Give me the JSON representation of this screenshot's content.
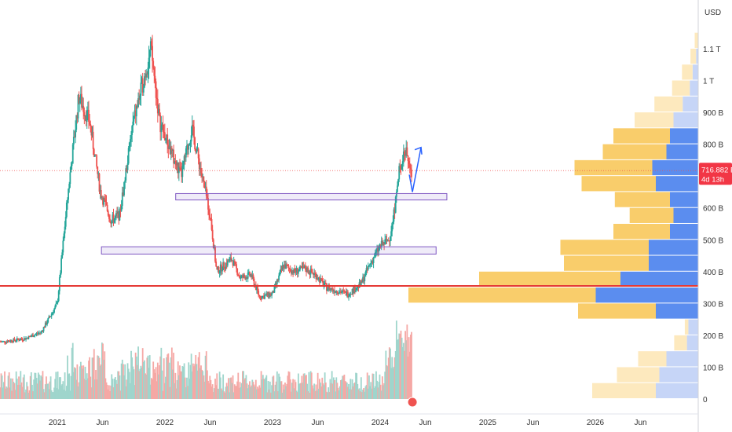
{
  "chart_data": {
    "type": "candlestick",
    "currency_label": "USD",
    "y_axis": {
      "min": 0,
      "max": 1200,
      "ticks": [
        {
          "value": 0,
          "label": "0"
        },
        {
          "value": 100,
          "label": "100 B"
        },
        {
          "value": 200,
          "label": "200 B"
        },
        {
          "value": 300,
          "label": "300 B"
        },
        {
          "value": 400,
          "label": "400 B"
        },
        {
          "value": 500,
          "label": "500 B"
        },
        {
          "value": 600,
          "label": "600 B"
        },
        {
          "value": 800,
          "label": "800 B"
        },
        {
          "value": 900,
          "label": "900 B"
        },
        {
          "value": 1000,
          "label": "1 T"
        },
        {
          "value": 1100,
          "label": "1.1 T"
        }
      ]
    },
    "x_axis": {
      "ticks": [
        {
          "label": "2021",
          "year": 2021.0
        },
        {
          "label": "Jun",
          "year": 2021.42
        },
        {
          "label": "2022",
          "year": 2022.0
        },
        {
          "label": "Jun",
          "year": 2022.42
        },
        {
          "label": "2023",
          "year": 2023.0
        },
        {
          "label": "Jun",
          "year": 2023.42
        },
        {
          "label": "2024",
          "year": 2024.0
        },
        {
          "label": "Jun",
          "year": 2024.42
        },
        {
          "label": "2025",
          "year": 2025.0
        },
        {
          "label": "Jun",
          "year": 2025.42
        },
        {
          "label": "2026",
          "year": 2026.0
        },
        {
          "label": "Jun",
          "year": 2026.42
        }
      ]
    },
    "price_path": [
      [
        2020.5,
        180
      ],
      [
        2020.7,
        190
      ],
      [
        2020.85,
        210
      ],
      [
        2021.0,
        300
      ],
      [
        2021.1,
        650
      ],
      [
        2021.2,
        950
      ],
      [
        2021.3,
        870
      ],
      [
        2021.4,
        650
      ],
      [
        2021.5,
        560
      ],
      [
        2021.58,
        580
      ],
      [
        2021.7,
        860
      ],
      [
        2021.8,
        1000
      ],
      [
        2021.87,
        1100
      ],
      [
        2021.95,
        870
      ],
      [
        2022.05,
        780
      ],
      [
        2022.15,
        700
      ],
      [
        2022.25,
        850
      ],
      [
        2022.35,
        690
      ],
      [
        2022.42,
        580
      ],
      [
        2022.48,
        400
      ],
      [
        2022.55,
        420
      ],
      [
        2022.62,
        440
      ],
      [
        2022.7,
        380
      ],
      [
        2022.8,
        390
      ],
      [
        2022.88,
        320
      ],
      [
        2023.0,
        330
      ],
      [
        2023.1,
        420
      ],
      [
        2023.2,
        400
      ],
      [
        2023.3,
        410
      ],
      [
        2023.4,
        390
      ],
      [
        2023.5,
        350
      ],
      [
        2023.6,
        340
      ],
      [
        2023.7,
        330
      ],
      [
        2023.82,
        360
      ],
      [
        2023.9,
        420
      ],
      [
        2024.0,
        480
      ],
      [
        2024.08,
        500
      ],
      [
        2024.12,
        560
      ],
      [
        2024.18,
        720
      ],
      [
        2024.22,
        780
      ],
      [
        2024.26,
        760
      ],
      [
        2024.28,
        700
      ],
      [
        2024.3,
        716
      ]
    ],
    "last_price": {
      "value": 716.882,
      "label": "716.882 B",
      "countdown": "4d 13h"
    },
    "support_line": {
      "value": 355,
      "color": "#e53935"
    },
    "zones": [
      {
        "from_year": 2022.1,
        "to_year": 2024.62,
        "low": 625,
        "high": 645,
        "color": "#7e57c2"
      },
      {
        "from_year": 2021.41,
        "to_year": 2024.52,
        "low": 455,
        "high": 478,
        "color": "#7e57c2"
      }
    ],
    "projection_arrow": {
      "points": [
        [
          2024.3,
          650
        ],
        [
          2024.38,
          790
        ]
      ],
      "color": "#2962ff"
    },
    "volume_profile": {
      "bins": [
        {
          "low": 1100,
          "high": 1150,
          "up": 5,
          "down": 0
        },
        {
          "low": 1050,
          "high": 1100,
          "up": 8,
          "down": 3
        },
        {
          "low": 1000,
          "high": 1050,
          "up": 15,
          "down": 8
        },
        {
          "low": 950,
          "high": 1000,
          "up": 25,
          "down": 12
        },
        {
          "low": 900,
          "high": 950,
          "up": 40,
          "down": 22
        },
        {
          "low": 850,
          "high": 900,
          "up": 55,
          "down": 35
        },
        {
          "low": 800,
          "high": 850,
          "up": 80,
          "down": 40
        },
        {
          "low": 750,
          "high": 800,
          "up": 90,
          "down": 45
        },
        {
          "low": 700,
          "high": 750,
          "up": 110,
          "down": 65
        },
        {
          "low": 650,
          "high": 700,
          "up": 105,
          "down": 60
        },
        {
          "low": 600,
          "high": 650,
          "up": 78,
          "down": 40
        },
        {
          "low": 550,
          "high": 600,
          "up": 62,
          "down": 35
        },
        {
          "low": 500,
          "high": 650,
          "up": 0,
          "down": 0
        },
        {
          "low": 500,
          "high": 550,
          "up": 80,
          "down": 40
        },
        {
          "low": 450,
          "high": 500,
          "up": 125,
          "down": 70
        },
        {
          "low": 400,
          "high": 450,
          "up": 120,
          "down": 70
        },
        {
          "low": 350,
          "high": 400,
          "up": 200,
          "down": 110
        },
        {
          "low": 300,
          "high": 350,
          "up": 265,
          "down": 145
        },
        {
          "low": 250,
          "high": 300,
          "up": 110,
          "down": 60
        },
        {
          "low": 200,
          "high": 250,
          "up": 5,
          "down": 14
        },
        {
          "low": 150,
          "high": 200,
          "up": 18,
          "down": 16
        },
        {
          "low": 100,
          "high": 150,
          "up": 40,
          "down": 45
        },
        {
          "low": 50,
          "high": 100,
          "up": 60,
          "down": 55
        },
        {
          "low": 0,
          "high": 50,
          "up": 90,
          "down": 60
        }
      ]
    },
    "colors": {
      "up": "#26a69a",
      "down": "#ef5350",
      "up_volume": "#9fd5cc",
      "down_volume": "#f5a8a5",
      "profile_up": "#f9cd6b",
      "profile_down": "#5b8def",
      "profile_up_light": "#fde9be",
      "profile_down_light": "#c6d5f7",
      "last_price_bg": "#f23645"
    }
  }
}
